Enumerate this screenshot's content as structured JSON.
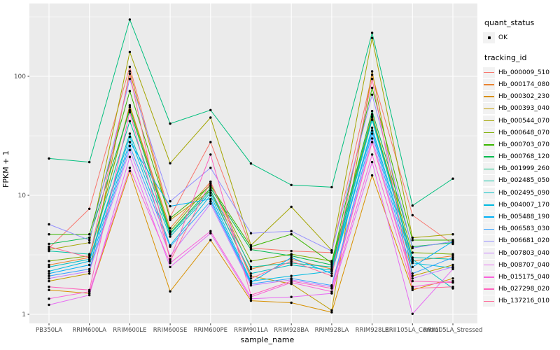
{
  "chart_data": {
    "type": "line",
    "title": "",
    "xlabel": "sample_name",
    "ylabel": "FPKM + 1",
    "y_scale": "log10",
    "grid": true,
    "legend_position": "right",
    "panel_bg": "#EBEBEB",
    "grid_color": "#FFFFFF",
    "tick_label_color": "#4D4D4D",
    "tick_mark_color": "#333333",
    "point_color": "#000000",
    "ylim": [
      0.85,
      410
    ],
    "y_tick_values": [
      1,
      10,
      100
    ],
    "y_tick_labels": [
      "1",
      "10",
      "100"
    ],
    "y_minor_values": [
      3.162,
      31.62,
      316.2
    ],
    "x_categories": [
      "PB350LA",
      "RRIM600LA",
      "RRIM600LE",
      "RRIM600SE",
      "RRIM600PE",
      "RRIM901LA",
      "RRIM928BA",
      "RRIM928LA",
      "RRIM928LE",
      "RRII105LA_Control",
      "RRII105LA_Stressed"
    ],
    "legend": {
      "quant_status_title": "quant_status",
      "quant_status_items": [
        {
          "label": "OK",
          "marker": "point-icon",
          "color": "#000000"
        }
      ],
      "tracking_id_title": "tracking_id"
    },
    "series": [
      {
        "name": "Hb_000009_510",
        "color": "#F8766D",
        "values": [
          3.6,
          7.7,
          120,
          6.6,
          28,
          3.6,
          3.4,
          3.3,
          103,
          6.8,
          3.9
        ]
      },
      {
        "name": "Hb_000174_080",
        "color": "#EA8331",
        "values": [
          2.6,
          3.0,
          57,
          5.3,
          13,
          2.4,
          2.9,
          2.4,
          48,
          2.8,
          3.1
        ]
      },
      {
        "name": "Hb_000302_230",
        "color": "#D89000",
        "values": [
          1.6,
          1.5,
          16,
          1.56,
          4.2,
          1.3,
          1.25,
          1.04,
          14.7,
          1.6,
          2.0
        ]
      },
      {
        "name": "Hb_000393_040",
        "color": "#C09B00",
        "values": [
          1.9,
          2.2,
          110,
          6.2,
          11,
          2.1,
          1.8,
          1.08,
          110,
          2.1,
          2.6
        ]
      },
      {
        "name": "Hb_000544_070",
        "color": "#A3A500",
        "values": [
          3.5,
          4.0,
          160,
          18.6,
          45,
          3.8,
          8.0,
          3.45,
          210,
          4.4,
          4.7
        ]
      },
      {
        "name": "Hb_000648_070",
        "color": "#7CAE00",
        "values": [
          2.8,
          3.1,
          55,
          5.0,
          12.5,
          2.8,
          3.2,
          2.8,
          46,
          3.3,
          3.2
        ]
      },
      {
        "name": "Hb_000703_070",
        "color": "#39B600",
        "values": [
          4.7,
          4.7,
          75,
          6.4,
          12,
          3.7,
          4.7,
          2.7,
          80,
          4.2,
          4.2
        ]
      },
      {
        "name": "Hb_000768_120",
        "color": "#00BB4E",
        "values": [
          3.9,
          4.4,
          52,
          4.8,
          11.5,
          3.5,
          3.1,
          2.6,
          51,
          3.7,
          4.0
        ]
      },
      {
        "name": "Hb_001999_260",
        "color": "#00BF7D",
        "values": [
          20.4,
          19,
          300,
          40,
          52,
          18.5,
          12.2,
          11.7,
          232,
          8.2,
          13.8
        ]
      },
      {
        "name": "Hb_002485_050",
        "color": "#00C1A3",
        "values": [
          3.4,
          3.2,
          42,
          4.7,
          11,
          2.5,
          2.7,
          2.5,
          45,
          3.0,
          2.9
        ]
      },
      {
        "name": "Hb_002495_090",
        "color": "#00BFC4",
        "values": [
          2.5,
          2.9,
          33,
          4.5,
          10.5,
          2.2,
          2.6,
          2.35,
          43,
          2.9,
          1.65
        ]
      },
      {
        "name": "Hb_004007_170",
        "color": "#00BAE0",
        "values": [
          2.3,
          2.8,
          31,
          3.8,
          10,
          1.9,
          2.1,
          2.3,
          37,
          2.7,
          2.45
        ]
      },
      {
        "name": "Hb_005488_190",
        "color": "#00B0F6",
        "values": [
          2.2,
          2.6,
          28,
          8.1,
          9.3,
          1.85,
          3.0,
          2.2,
          35,
          2.5,
          4.1
        ]
      },
      {
        "name": "Hb_006583_030",
        "color": "#35A2FF",
        "values": [
          2.1,
          2.4,
          26,
          3.7,
          8.9,
          1.8,
          2.0,
          1.75,
          33,
          2.2,
          3.0
        ]
      },
      {
        "name": "Hb_006681_020",
        "color": "#9590FF",
        "values": [
          5.7,
          4.2,
          95,
          8.9,
          17,
          4.8,
          5.0,
          3.4,
          70,
          3.6,
          4.1
        ]
      },
      {
        "name": "Hb_007803_040",
        "color": "#C77CFF",
        "values": [
          2.0,
          2.3,
          24,
          3.1,
          8.5,
          1.75,
          1.95,
          1.7,
          30,
          2.0,
          2.5
        ]
      },
      {
        "name": "Hb_008707_040",
        "color": "#E76BF3",
        "values": [
          1.2,
          1.45,
          21,
          2.5,
          4.8,
          1.35,
          1.4,
          1.5,
          19,
          1.01,
          2.4
        ]
      },
      {
        "name": "Hb_015175_040",
        "color": "#FA62DB",
        "values": [
          1.35,
          1.55,
          17,
          2.7,
          5.0,
          1.4,
          1.85,
          1.55,
          22,
          1.7,
          1.9
        ]
      },
      {
        "name": "Hb_027298_020",
        "color": "#FF62BC",
        "values": [
          1.7,
          1.6,
          50,
          2.9,
          22,
          1.45,
          1.9,
          1.65,
          28,
          1.9,
          1.85
        ]
      },
      {
        "name": "Hb_137216_010",
        "color": "#FF6A98",
        "values": [
          3.7,
          3.0,
          105,
          2.8,
          13,
          2.0,
          2.8,
          2.1,
          95,
          1.65,
          1.7
        ]
      }
    ]
  }
}
